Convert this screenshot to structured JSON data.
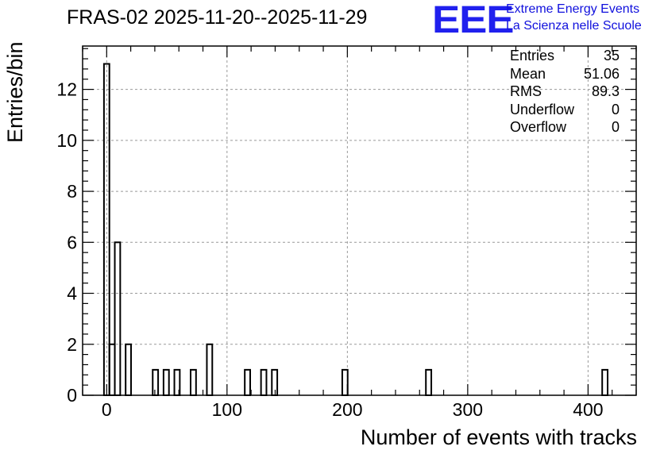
{
  "chart_data": {
    "type": "bar",
    "title": "FRAS-02 2025-11-20--2025-11-29",
    "xlabel": "Number of events with tracks",
    "ylabel": "Entries/bin",
    "xlim": [
      -20,
      440
    ],
    "ylim": [
      0,
      13.7
    ],
    "xticks": [
      0,
      100,
      200,
      300,
      400
    ],
    "yticks": [
      0,
      2,
      4,
      6,
      8,
      10,
      12
    ],
    "grid": true,
    "legend": "none",
    "bin_width": 4.5,
    "bars": [
      {
        "x": 0,
        "value": 13
      },
      {
        "x": 4.5,
        "value": 2
      },
      {
        "x": 9,
        "value": 6
      },
      {
        "x": 18,
        "value": 2
      },
      {
        "x": 40.5,
        "value": 1
      },
      {
        "x": 49.5,
        "value": 1
      },
      {
        "x": 58.5,
        "value": 1
      },
      {
        "x": 72,
        "value": 1
      },
      {
        "x": 85.5,
        "value": 2
      },
      {
        "x": 117,
        "value": 1
      },
      {
        "x": 130.5,
        "value": 1
      },
      {
        "x": 139.5,
        "value": 1
      },
      {
        "x": 198,
        "value": 1
      },
      {
        "x": 267.5,
        "value": 1
      },
      {
        "x": 414,
        "value": 1
      }
    ],
    "stats": [
      {
        "label": "Entries",
        "value": "35"
      },
      {
        "label": "Mean",
        "value": "51.06"
      },
      {
        "label": "RMS",
        "value": "89.3"
      },
      {
        "label": "Underflow",
        "value": "0"
      },
      {
        "label": "Overflow",
        "value": "0"
      }
    ]
  },
  "logo": {
    "mark": "EEE",
    "line1": "Extreme Energy Events",
    "line2": "La Scienza nelle Scuole"
  },
  "colors": {
    "logo": "#2020ee",
    "bar_stroke": "#000000",
    "grid": "#999999"
  }
}
